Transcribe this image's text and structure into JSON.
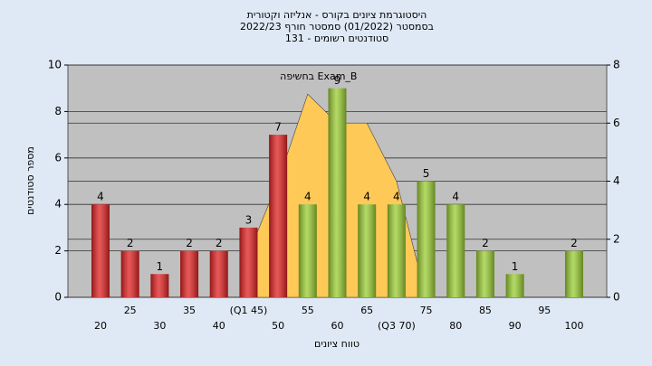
{
  "chart_data": {
    "type": "bar",
    "title": [
      "היסטוגרמת ציונים בקורס - אנליזה וקטורית",
      "בסמסטר (01/2022) סמסטר חורף 2022/23",
      "סטודנטים רשומים - 131"
    ],
    "xlabel": "טווח ציונים",
    "ylabel": "מספר סטודנטים",
    "categories": [
      "20",
      "25",
      "30",
      "35",
      "40",
      "(Q1 45)",
      "50",
      "55",
      "60",
      "65",
      "(Q3 70)",
      "75",
      "80",
      "85",
      "90",
      "95",
      "100"
    ],
    "series": [
      {
        "type": "bar",
        "values": [
          4,
          2,
          1,
          2,
          2,
          3,
          7,
          4,
          9,
          4,
          4,
          5,
          4,
          2,
          1,
          null,
          2
        ],
        "colors": [
          "#e02020",
          "#e02020",
          "#e02020",
          "#e02020",
          "#e02020",
          "#e02020",
          "#e02020",
          "#9acd32",
          "#9acd32",
          "#9acd32",
          "#9acd32",
          "#9acd32",
          "#9acd32",
          "#9acd32",
          "#9acd32",
          "#9acd32",
          "#9acd32"
        ]
      },
      {
        "type": "area",
        "name": "בחשיפה Exam_B",
        "axis": "y2",
        "color": "#ffc957",
        "values": [
          null,
          null,
          null,
          null,
          null,
          1.5,
          4,
          7,
          6,
          6,
          4,
          0,
          null,
          null,
          null,
          null,
          null
        ]
      }
    ],
    "ylim": [
      0,
      10
    ],
    "yticks": [
      0,
      2,
      4,
      6,
      8,
      10
    ],
    "y2lim": [
      0,
      8
    ],
    "y2ticks": [
      0,
      2,
      4,
      6,
      8
    ],
    "grid": true
  }
}
